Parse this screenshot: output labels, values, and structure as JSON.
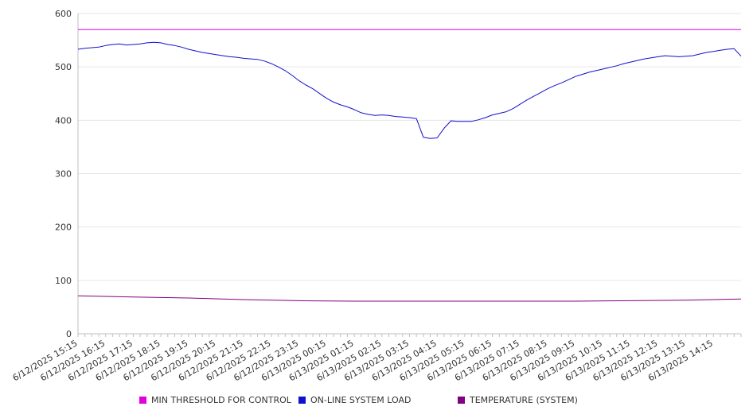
{
  "chart_data": {
    "type": "line",
    "ylim": [
      0,
      600
    ],
    "yticks": [
      0,
      100,
      200,
      300,
      400,
      500,
      600
    ],
    "grid": true,
    "legend_position": "bottom",
    "x_tick_labels": [
      "6/12/2025 15:15",
      "6/12/2025 16:15",
      "6/12/2025 17:15",
      "6/12/2025 18:15",
      "6/12/2025 19:15",
      "6/12/2025 20:15",
      "6/12/2025 21:15",
      "6/12/2025 22:15",
      "6/12/2025 23:15",
      "6/13/2025 00:15",
      "6/13/2025 01:15",
      "6/13/2025 02:15",
      "6/13/2025 03:15",
      "6/13/2025 04:15",
      "6/13/2025 05:15",
      "6/13/2025 06:15",
      "6/13/2025 07:15",
      "6/13/2025 08:15",
      "6/13/2025 09:15",
      "6/13/2025 10:15",
      "6/13/2025 11:15",
      "6/13/2025 12:15",
      "6/13/2025 13:15",
      "6/13/2025 14:15"
    ],
    "x_start": "6/12/2025 15:15",
    "x_end": "6/13/2025 15:15",
    "series": [
      {
        "name": "MIN THRESHOLD FOR CONTROL",
        "color": "#e000e0",
        "x": [
          "6/12/2025 15:15",
          "6/13/2025 15:15"
        ],
        "values": [
          570,
          570
        ]
      },
      {
        "name": "ON-LINE SYSTEM LOAD",
        "color": "#1010d0",
        "x": [
          "6/12/2025 15:15",
          "6/12/2025 15:30",
          "6/12/2025 15:45",
          "6/12/2025 16:00",
          "6/12/2025 16:15",
          "6/12/2025 16:30",
          "6/12/2025 16:45",
          "6/12/2025 17:00",
          "6/12/2025 17:15",
          "6/12/2025 17:30",
          "6/12/2025 17:45",
          "6/12/2025 18:00",
          "6/12/2025 18:15",
          "6/12/2025 18:30",
          "6/12/2025 18:45",
          "6/12/2025 19:00",
          "6/12/2025 19:15",
          "6/12/2025 19:30",
          "6/12/2025 19:45",
          "6/12/2025 20:00",
          "6/12/2025 20:15",
          "6/12/2025 20:30",
          "6/12/2025 20:45",
          "6/12/2025 21:00",
          "6/12/2025 21:15",
          "6/12/2025 21:30",
          "6/12/2025 21:45",
          "6/12/2025 22:00",
          "6/12/2025 22:15",
          "6/12/2025 22:30",
          "6/12/2025 22:45",
          "6/12/2025 23:00",
          "6/12/2025 23:15",
          "6/12/2025 23:30",
          "6/12/2025 23:45",
          "6/13/2025 00:00",
          "6/13/2025 00:15",
          "6/13/2025 00:30",
          "6/13/2025 00:45",
          "6/13/2025 01:00",
          "6/13/2025 01:15",
          "6/13/2025 01:30",
          "6/13/2025 01:45",
          "6/13/2025 02:00",
          "6/13/2025 02:15",
          "6/13/2025 02:30",
          "6/13/2025 02:45",
          "6/13/2025 03:00",
          "6/13/2025 03:15",
          "6/13/2025 03:30",
          "6/13/2025 03:45",
          "6/13/2025 04:00",
          "6/13/2025 04:15",
          "6/13/2025 04:30",
          "6/13/2025 04:45",
          "6/13/2025 05:00",
          "6/13/2025 05:15",
          "6/13/2025 05:30",
          "6/13/2025 05:45",
          "6/13/2025 06:00",
          "6/13/2025 06:15",
          "6/13/2025 06:30",
          "6/13/2025 06:45",
          "6/13/2025 07:00",
          "6/13/2025 07:15",
          "6/13/2025 07:30",
          "6/13/2025 07:45",
          "6/13/2025 08:00",
          "6/13/2025 08:15",
          "6/13/2025 08:30",
          "6/13/2025 08:45",
          "6/13/2025 09:00",
          "6/13/2025 09:15",
          "6/13/2025 09:30",
          "6/13/2025 09:45",
          "6/13/2025 10:00",
          "6/13/2025 10:15",
          "6/13/2025 10:30",
          "6/13/2025 10:45",
          "6/13/2025 11:00",
          "6/13/2025 11:15",
          "6/13/2025 11:30",
          "6/13/2025 11:45",
          "6/13/2025 12:00",
          "6/13/2025 12:15",
          "6/13/2025 12:30",
          "6/13/2025 12:45",
          "6/13/2025 13:00",
          "6/13/2025 13:15",
          "6/13/2025 13:30",
          "6/13/2025 13:45",
          "6/13/2025 14:00",
          "6/13/2025 14:15",
          "6/13/2025 14:30",
          "6/13/2025 14:45",
          "6/13/2025 15:00",
          "6/13/2025 15:15"
        ],
        "values": [
          533,
          535,
          536,
          537,
          540,
          542,
          543,
          541,
          542,
          543,
          545,
          546,
          545,
          542,
          540,
          537,
          533,
          530,
          527,
          525,
          523,
          521,
          519,
          518,
          516,
          515,
          514,
          511,
          506,
          500,
          493,
          484,
          474,
          466,
          459,
          450,
          441,
          434,
          429,
          425,
          420,
          414,
          411,
          409,
          410,
          409,
          407,
          406,
          405,
          403,
          368,
          366,
          367,
          385,
          399,
          398,
          398,
          398,
          401,
          405,
          410,
          413,
          416,
          422,
          430,
          438,
          445,
          452,
          459,
          465,
          470,
          476,
          482,
          486,
          490,
          493,
          496,
          499,
          502,
          506,
          509,
          512,
          515,
          517,
          519,
          521,
          520,
          519,
          520,
          521,
          524,
          527,
          529,
          531,
          533,
          534,
          520
        ]
      },
      {
        "name": "TEMPERATURE (SYSTEM)",
        "color": "#800080",
        "x": [
          "6/12/2025 15:15",
          "6/12/2025 17:15",
          "6/12/2025 19:15",
          "6/12/2025 21:15",
          "6/12/2025 23:15",
          "6/13/2025 01:15",
          "6/13/2025 03:15",
          "6/13/2025 05:15",
          "6/13/2025 07:15",
          "6/13/2025 09:15",
          "6/13/2025 11:15",
          "6/13/2025 13:15",
          "6/13/2025 15:15"
        ],
        "values": [
          71,
          69,
          67,
          64,
          62,
          61,
          61,
          61,
          61,
          61,
          62,
          63,
          65
        ]
      }
    ]
  }
}
